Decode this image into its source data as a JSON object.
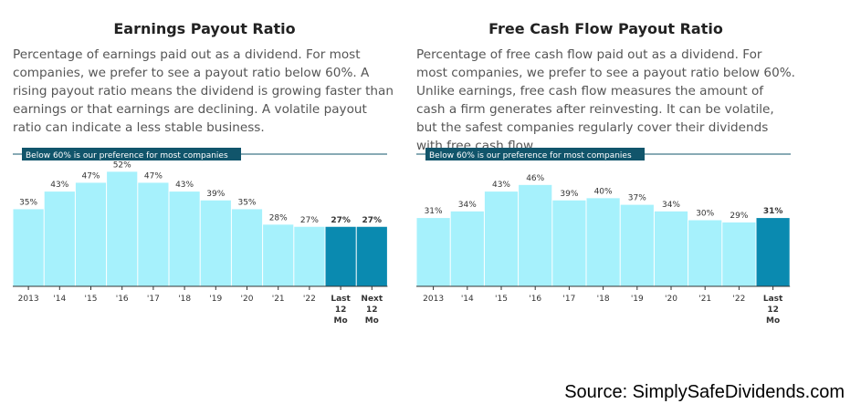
{
  "colors": {
    "bar_light": "#a6f1fc",
    "bar_dark": "#0a8ab0",
    "label_bg": "#11556b",
    "axis": "#333333"
  },
  "source": "Source: SimplySafeDividends.com",
  "chart_data": [
    {
      "type": "bar",
      "title": "Earnings Payout Ratio",
      "description": "Percentage of earnings paid out as a dividend. For most companies, we prefer to see a payout ratio below 60%. A rising payout ratio means the dividend is growing faster than earnings or that earnings are declining. A volatile payout ratio can indicate a less stable business.",
      "reference_line": {
        "value": 60,
        "label": "Below 60% is our preference for most companies"
      },
      "ylim": [
        0,
        60
      ],
      "categories": [
        "2013",
        "'14",
        "'15",
        "'16",
        "'17",
        "'18",
        "'19",
        "'20",
        "'21",
        "'22",
        "Last 12 Mo",
        "Next 12 Mo"
      ],
      "values": [
        35,
        43,
        47,
        52,
        47,
        43,
        39,
        35,
        28,
        27,
        27,
        27
      ],
      "value_labels": [
        "35%",
        "43%",
        "47%",
        "52%",
        "47%",
        "43%",
        "39%",
        "35%",
        "28%",
        "27%",
        "27%",
        "27%"
      ],
      "highlighted": [
        false,
        false,
        false,
        false,
        false,
        false,
        false,
        false,
        false,
        false,
        true,
        true
      ]
    },
    {
      "type": "bar",
      "title": "Free Cash Flow Payout Ratio",
      "description": "Percentage of free cash flow paid out as a dividend. For most companies, we prefer to see a payout ratio below 60%. Unlike earnings, free cash flow measures the amount of cash a firm generates after reinvesting. It can be volatile, but the safest companies regularly cover their dividends with free cash flow.",
      "reference_line": {
        "value": 60,
        "label": "Below 60% is our preference for most companies"
      },
      "ylim": [
        0,
        60
      ],
      "categories": [
        "2013",
        "'14",
        "'15",
        "'16",
        "'17",
        "'18",
        "'19",
        "'20",
        "'21",
        "'22",
        "Last 12 Mo"
      ],
      "values": [
        31,
        34,
        43,
        46,
        39,
        40,
        37,
        34,
        30,
        29,
        31
      ],
      "value_labels": [
        "31%",
        "34%",
        "43%",
        "46%",
        "39%",
        "40%",
        "37%",
        "34%",
        "30%",
        "29%",
        "31%"
      ],
      "highlighted": [
        false,
        false,
        false,
        false,
        false,
        false,
        false,
        false,
        false,
        false,
        true
      ]
    }
  ]
}
